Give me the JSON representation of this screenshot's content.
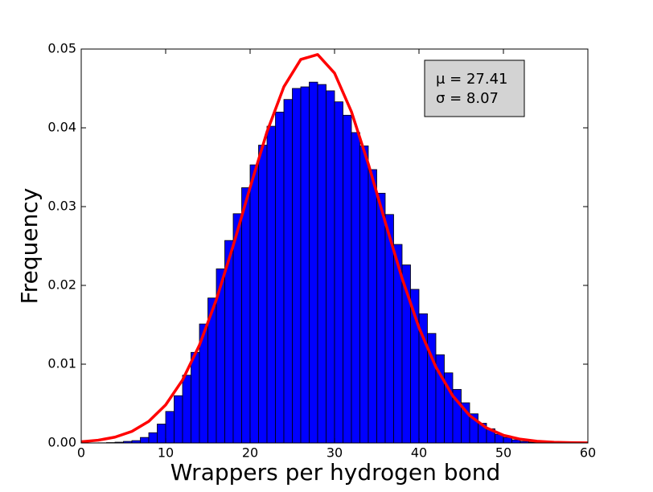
{
  "chart_data": {
    "type": "histogram",
    "xlabel": "Wrappers per hydrogen bond",
    "ylabel": "Frequency",
    "bins": [
      2,
      3,
      4,
      5,
      6,
      7,
      8,
      9,
      10,
      11,
      12,
      13,
      14,
      15,
      16,
      17,
      18,
      19,
      20,
      21,
      22,
      23,
      24,
      25,
      26,
      27,
      28,
      29,
      30,
      31,
      32,
      33,
      34,
      35,
      36,
      37,
      38,
      39,
      40,
      41,
      42,
      43,
      44,
      45,
      46,
      47,
      48,
      49,
      50,
      51,
      52,
      53,
      54,
      55,
      56
    ],
    "values": [
      2e-05,
      5e-05,
      0.0001,
      0.0002,
      0.0003,
      0.0007,
      0.0013,
      0.0024,
      0.004,
      0.006,
      0.0086,
      0.0115,
      0.0151,
      0.0184,
      0.0221,
      0.0257,
      0.0291,
      0.0324,
      0.0353,
      0.0378,
      0.0402,
      0.042,
      0.0436,
      0.045,
      0.0452,
      0.0458,
      0.0455,
      0.0447,
      0.0433,
      0.0416,
      0.0394,
      0.0377,
      0.0347,
      0.0317,
      0.029,
      0.0252,
      0.0226,
      0.0195,
      0.0164,
      0.0139,
      0.0112,
      0.0089,
      0.0068,
      0.0051,
      0.0037,
      0.0025,
      0.0018,
      0.0011,
      0.0007,
      0.0004,
      0.0002,
      0.0001,
      5e-05,
      2e-05
    ],
    "color": "#0000ff",
    "curve": {
      "type": "line",
      "color": "#ff0000",
      "x": [
        0,
        2,
        4,
        6,
        8,
        10,
        12,
        14,
        16,
        18,
        20,
        22,
        24,
        26,
        28,
        30,
        32,
        34,
        36,
        38,
        40,
        42,
        44,
        46,
        48,
        50,
        52,
        54,
        56,
        58,
        60
      ],
      "y": [
        0.00015,
        0.00035,
        0.00074,
        0.00147,
        0.00274,
        0.00483,
        0.00799,
        0.01242,
        0.01819,
        0.02505,
        0.03243,
        0.03949,
        0.04521,
        0.04868,
        0.0493,
        0.04695,
        0.04205,
        0.03542,
        0.02805,
        0.0209,
        0.01464,
        0.00964,
        0.00598,
        0.00348,
        0.00191,
        0.00098,
        0.00048,
        0.00022,
        9e-05,
        4e-05,
        1e-05
      ]
    },
    "annotation": [
      "μ = 27.41",
      "σ = 8.07"
    ],
    "xlim": [
      0,
      60
    ],
    "xticks": [
      0,
      10,
      20,
      30,
      40,
      50,
      60
    ],
    "ylim": [
      0,
      0.05
    ],
    "yticks": [
      {
        "value": 0,
        "label": "0.00"
      },
      0.01,
      0.02,
      0.03,
      0.04,
      0.05
    ],
    "grid": false
  }
}
